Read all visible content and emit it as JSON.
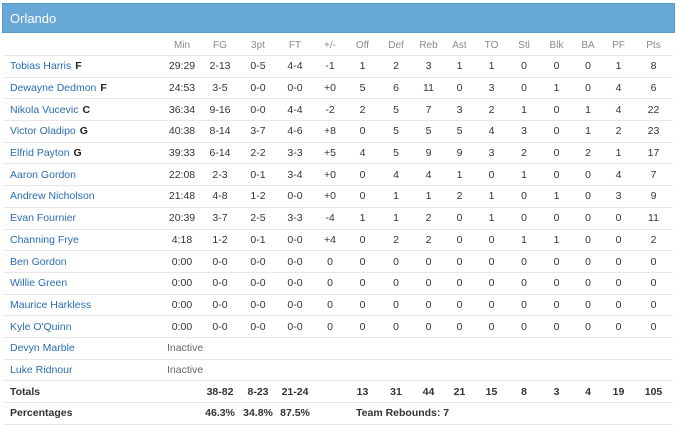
{
  "team": "Orlando",
  "columns": [
    "Min",
    "FG",
    "3pt",
    "FT",
    "+/-",
    "Off",
    "Def",
    "Reb",
    "Ast",
    "TO",
    "Stl",
    "Blk",
    "BA",
    "PF",
    "Pts"
  ],
  "players": [
    {
      "name": "Tobias Harris",
      "pos": "F",
      "stats": [
        "29:29",
        "2-13",
        "0-5",
        "4-4",
        "-1",
        "1",
        "2",
        "3",
        "1",
        "1",
        "0",
        "0",
        "0",
        "1",
        "8"
      ]
    },
    {
      "name": "Dewayne Dedmon",
      "pos": "F",
      "stats": [
        "24:53",
        "3-5",
        "0-0",
        "0-0",
        "+0",
        "5",
        "6",
        "11",
        "0",
        "3",
        "0",
        "1",
        "0",
        "4",
        "6"
      ]
    },
    {
      "name": "Nikola Vucevic",
      "pos": "C",
      "stats": [
        "36:34",
        "9-16",
        "0-0",
        "4-4",
        "-2",
        "2",
        "5",
        "7",
        "3",
        "2",
        "1",
        "0",
        "1",
        "4",
        "22"
      ]
    },
    {
      "name": "Victor Oladipo",
      "pos": "G",
      "stats": [
        "40:38",
        "8-14",
        "3-7",
        "4-6",
        "+8",
        "0",
        "5",
        "5",
        "5",
        "4",
        "3",
        "0",
        "1",
        "2",
        "23"
      ]
    },
    {
      "name": "Elfrid Payton",
      "pos": "G",
      "stats": [
        "39:33",
        "6-14",
        "2-2",
        "3-3",
        "+5",
        "4",
        "5",
        "9",
        "9",
        "3",
        "2",
        "0",
        "2",
        "1",
        "17"
      ]
    },
    {
      "name": "Aaron Gordon",
      "pos": "",
      "stats": [
        "22:08",
        "2-3",
        "0-1",
        "3-4",
        "+0",
        "0",
        "4",
        "4",
        "1",
        "0",
        "1",
        "0",
        "0",
        "4",
        "7"
      ]
    },
    {
      "name": "Andrew Nicholson",
      "pos": "",
      "stats": [
        "21:48",
        "4-8",
        "1-2",
        "0-0",
        "+0",
        "0",
        "1",
        "1",
        "2",
        "1",
        "0",
        "1",
        "0",
        "3",
        "9"
      ]
    },
    {
      "name": "Evan Fournier",
      "pos": "",
      "stats": [
        "20:39",
        "3-7",
        "2-5",
        "3-3",
        "-4",
        "1",
        "1",
        "2",
        "0",
        "1",
        "0",
        "0",
        "0",
        "0",
        "11"
      ]
    },
    {
      "name": "Channing Frye",
      "pos": "",
      "stats": [
        "4:18",
        "1-2",
        "0-1",
        "0-0",
        "+4",
        "0",
        "2",
        "2",
        "0",
        "0",
        "1",
        "1",
        "0",
        "0",
        "2"
      ]
    },
    {
      "name": "Ben Gordon",
      "pos": "",
      "stats": [
        "0:00",
        "0-0",
        "0-0",
        "0-0",
        "0",
        "0",
        "0",
        "0",
        "0",
        "0",
        "0",
        "0",
        "0",
        "0",
        "0"
      ]
    },
    {
      "name": "Willie Green",
      "pos": "",
      "stats": [
        "0:00",
        "0-0",
        "0-0",
        "0-0",
        "0",
        "0",
        "0",
        "0",
        "0",
        "0",
        "0",
        "0",
        "0",
        "0",
        "0"
      ]
    },
    {
      "name": "Maurice Harkless",
      "pos": "",
      "stats": [
        "0:00",
        "0-0",
        "0-0",
        "0-0",
        "0",
        "0",
        "0",
        "0",
        "0",
        "0",
        "0",
        "0",
        "0",
        "0",
        "0"
      ]
    },
    {
      "name": "Kyle O'Quinn",
      "pos": "",
      "stats": [
        "0:00",
        "0-0",
        "0-0",
        "0-0",
        "0",
        "0",
        "0",
        "0",
        "0",
        "0",
        "0",
        "0",
        "0",
        "0",
        "0"
      ]
    }
  ],
  "inactive": [
    {
      "name": "Devyn Marble",
      "status": "Inactive"
    },
    {
      "name": "Luke Ridnour",
      "status": "Inactive"
    }
  ],
  "totals": {
    "label": "Totals",
    "stats": [
      "",
      "38-82",
      "8-23",
      "21-24",
      "",
      "13",
      "31",
      "44",
      "21",
      "15",
      "8",
      "3",
      "4",
      "19",
      "105"
    ]
  },
  "percentages": {
    "label": "Percentages",
    "fg": "46.3%",
    "three": "34.8%",
    "ft": "87.5%",
    "team_rebounds": "Team Rebounds: 7"
  }
}
